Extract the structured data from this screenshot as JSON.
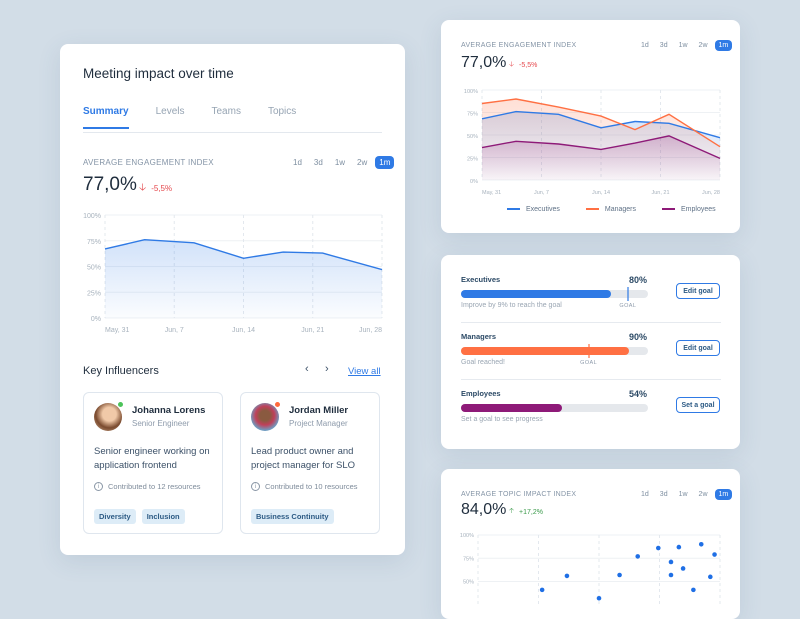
{
  "main_card": {
    "title": "Meeting impact over time",
    "tabs": [
      {
        "label": "Summary",
        "active": true
      },
      {
        "label": "Levels"
      },
      {
        "label": "Teams"
      },
      {
        "label": "Topics"
      }
    ],
    "metric": {
      "label": "AVERAGE ENGAGEMENT INDEX",
      "value": "77,0%",
      "delta": "-5,5%",
      "delta_direction": "down",
      "delta_color": "#e5484d"
    },
    "ranges": [
      "1d",
      "3d",
      "1w",
      "2w",
      "1m"
    ],
    "active_range": "1m",
    "influencers": {
      "title": "Key Influencers",
      "view_all": "View all",
      "people": [
        {
          "name": "Johanna Lorens",
          "role": "Senior Engineer",
          "description": "Senior engineer working on application frontend",
          "contributions": "Contributed to 12 resources",
          "status_color": "#4cc35a",
          "tags": [
            "Diversity",
            "Inclusion"
          ]
        },
        {
          "name": "Jordan Miller",
          "role": "Project Manager",
          "description": "Lead product owner and project manager for SLO",
          "contributions": "Contributed to 10 resources",
          "status_color": "#ff6b3d",
          "tags": [
            "Business Continuity"
          ]
        }
      ]
    }
  },
  "levels_card": {
    "metric": {
      "label": "AVERAGE ENGAGEMENT INDEX",
      "value": "77,0%",
      "delta": "-5,5%",
      "delta_direction": "down"
    },
    "ranges": [
      "1d",
      "3d",
      "1w",
      "2w",
      "1m"
    ],
    "active_range": "1m"
  },
  "goals_card": {
    "rows": [
      {
        "name": "Executives",
        "percent_label": "80%",
        "value": 80,
        "goal": 89,
        "goal_label": "GOAL",
        "hint": "Improve by 9% to reach the goal",
        "button": "Edit goal",
        "color": "#2f7ae5"
      },
      {
        "name": "Managers",
        "percent_label": "90%",
        "value": 90,
        "goal": 68,
        "goal_label": "GOAL",
        "hint": "Goal reached!",
        "button": "Edit goal",
        "color": "#ff7043"
      },
      {
        "name": "Employees",
        "percent_label": "54%",
        "value": 54,
        "hint": "Set a goal to see progress",
        "button": "Set a goal",
        "color": "#8e1a78"
      }
    ]
  },
  "topic_card": {
    "metric": {
      "label": "AVERAGE TOPIC IMPACT INDEX",
      "value": "84,0%",
      "delta": "+17,2%",
      "delta_direction": "up",
      "delta_color": "#3a9a4a"
    },
    "ranges": [
      "1d",
      "3d",
      "1w",
      "2w",
      "1m"
    ],
    "active_range": "1m"
  },
  "chart_data": [
    {
      "type": "area",
      "x": [
        "May 31",
        "Jun 4",
        "Jun 9",
        "Jun 14",
        "Jun 18",
        "Jun 22",
        "Jun 28"
      ],
      "series": [
        {
          "values": [
            67,
            76,
            73,
            58,
            64,
            63,
            47
          ],
          "color": "#2f7ae5"
        }
      ],
      "xticks": [
        "May, 31",
        "Jun, 7",
        "Jun, 14",
        "Jun, 21",
        "Jun, 28"
      ],
      "yticks": [
        "0%",
        "25%",
        "50%",
        "75%",
        "100%"
      ],
      "ylim": [
        0,
        100
      ],
      "grid": true
    },
    {
      "type": "area",
      "x": [
        "May 31",
        "Jun 4",
        "Jun 9",
        "Jun 14",
        "Jun 18",
        "Jun 22",
        "Jun 28"
      ],
      "series": [
        {
          "name": "Executives",
          "values": [
            68,
            76,
            73,
            58,
            65,
            63,
            47
          ],
          "color": "#2f7ae5"
        },
        {
          "name": "Managers",
          "values": [
            85,
            90,
            81,
            71,
            56,
            73,
            37
          ],
          "color": "#ff7043"
        },
        {
          "name": "Employees",
          "values": [
            36,
            43,
            40,
            34,
            41,
            49,
            24
          ],
          "color": "#8e1a78"
        }
      ],
      "xticks": [
        "May, 31",
        "Jun, 7",
        "Jun, 14",
        "Jun, 21",
        "Jun, 28"
      ],
      "yticks": [
        "0%",
        "25%",
        "50%",
        "75%",
        "100%"
      ],
      "ylim": [
        0,
        100
      ],
      "grid": true,
      "legend": "bottom"
    },
    {
      "type": "scatter",
      "yticks": [
        "50%",
        "75%",
        "100%"
      ],
      "ylim": [
        30,
        100
      ],
      "grid": true,
      "points": [
        [
          1.06,
          41
        ],
        [
          1.47,
          56
        ],
        [
          2.0,
          32
        ],
        [
          2.34,
          57
        ],
        [
          2.64,
          77
        ],
        [
          2.98,
          86
        ],
        [
          3.19,
          71
        ],
        [
          3.19,
          57
        ],
        [
          3.32,
          87
        ],
        [
          3.39,
          64
        ],
        [
          3.56,
          41
        ],
        [
          3.69,
          90
        ],
        [
          3.84,
          55
        ],
        [
          3.91,
          79
        ]
      ],
      "color": "#1f6fe5"
    }
  ]
}
